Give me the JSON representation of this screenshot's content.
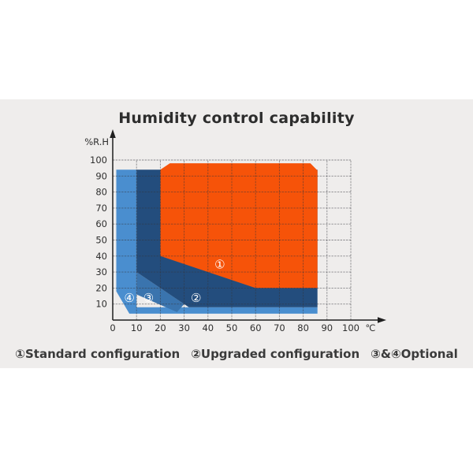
{
  "page": {
    "background_color": "#ffffff",
    "band_color": "#efedec"
  },
  "title": "Humidity control capability",
  "chart_data": {
    "type": "area",
    "title": "Humidity control capability",
    "xlabel": "℃",
    "ylabel": "%R.H",
    "xlim": [
      0,
      100
    ],
    "ylim": [
      0,
      100
    ],
    "grid": true,
    "x_ticks": [
      0,
      10,
      20,
      30,
      40,
      50,
      60,
      70,
      80,
      90,
      100
    ],
    "y_gridlines": [
      10,
      20,
      30,
      40,
      50,
      60,
      70,
      80,
      90,
      100
    ],
    "y_tick_labels": [
      10,
      20,
      30,
      40,
      50,
      60,
      70,
      80,
      90,
      100
    ],
    "axis_color": "#1f1f1f",
    "grid_color": "#34343c",
    "tick_color": "#2f2f2f",
    "regions": [
      {
        "id": "4",
        "name": "optional-4",
        "legend_symbol": "④",
        "color": "#4a8ecf",
        "points": [
          [
            1.5,
            94
          ],
          [
            10,
            94
          ],
          [
            10,
            8
          ],
          [
            86,
            8
          ],
          [
            86,
            4
          ],
          [
            7,
            4
          ],
          [
            1.5,
            18
          ]
        ]
      },
      {
        "id": "3",
        "name": "optional-3",
        "legend_symbol": "③",
        "color": "#3a74ae",
        "points": [
          [
            10,
            30
          ],
          [
            30,
            10
          ],
          [
            27,
            5
          ],
          [
            10,
            16
          ]
        ]
      },
      {
        "id": "2",
        "name": "upgraded-configuration",
        "legend_symbol": "②",
        "color": "#234d7d",
        "points": [
          [
            10,
            94
          ],
          [
            86,
            94
          ],
          [
            86,
            8
          ],
          [
            32,
            8
          ],
          [
            10,
            30
          ]
        ]
      },
      {
        "id": "1",
        "name": "standard-configuration",
        "legend_symbol": "①",
        "color": "#f65309",
        "points": [
          [
            20,
            94
          ],
          [
            24,
            98
          ],
          [
            83,
            98
          ],
          [
            86,
            93.5
          ],
          [
            86,
            20
          ],
          [
            60,
            20
          ],
          [
            20,
            40
          ]
        ]
      }
    ],
    "markers": [
      {
        "symbol": "①",
        "t": 45,
        "rh": 35
      },
      {
        "symbol": "②",
        "t": 35,
        "rh": 14
      },
      {
        "symbol": "③",
        "t": 15,
        "rh": 14
      },
      {
        "symbol": "④",
        "t": 7,
        "rh": 14
      }
    ],
    "marker_color": "#ffffff"
  },
  "legend": {
    "items": [
      {
        "symbol": "①",
        "label": "Standard configuration"
      },
      {
        "symbol": "②",
        "label": "Upgraded configuration"
      },
      {
        "symbol": "③&④",
        "label": "Optional"
      }
    ]
  }
}
